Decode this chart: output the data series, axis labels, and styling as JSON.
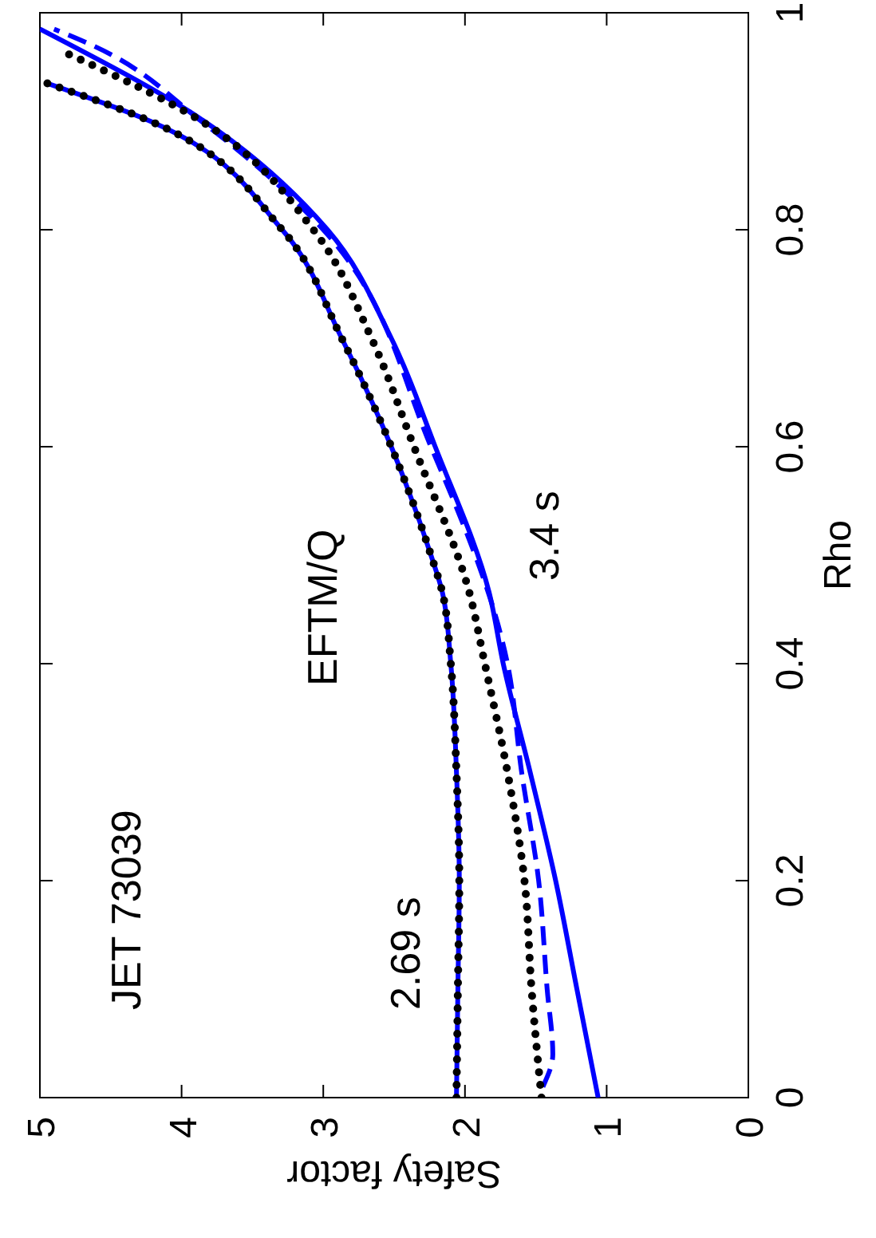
{
  "chart_data": {
    "type": "line",
    "xlabel": "Safety factor",
    "ylabel": "Rho",
    "xlim": [
      5,
      0
    ],
    "xticks": [
      5,
      4,
      3,
      2,
      1,
      0
    ],
    "ylim": [
      0,
      1
    ],
    "yticks": [
      0,
      0.2,
      0.4,
      0.6,
      0.8,
      1
    ],
    "grid": false,
    "series": [
      {
        "color": "#0000ff",
        "line_style": "solid",
        "x": [
          2.06,
          2.05,
          2.04,
          2.06,
          2.1,
          2.16,
          2.24,
          2.52,
          2.87,
          3.29,
          4.22,
          4.95
        ],
        "values": [
          0,
          0.1,
          0.2,
          0.3,
          0.4,
          0.466,
          0.5,
          0.6,
          0.7,
          0.8,
          0.9,
          0.935
        ]
      },
      {
        "color": "#000000",
        "line_style": "dotted",
        "x": [
          2.06,
          2.05,
          2.04,
          2.06,
          2.1,
          2.16,
          2.24,
          2.52,
          2.87,
          3.29,
          4.22,
          4.95
        ],
        "values": [
          0,
          0.1,
          0.2,
          0.3,
          0.4,
          0.466,
          0.5,
          0.6,
          0.7,
          0.8,
          0.9,
          0.935
        ]
      },
      {
        "color": "#0000ff",
        "line_style": "solid",
        "x": [
          1.06,
          1.21,
          1.36,
          1.54,
          1.73,
          1.83,
          2.21,
          2.52,
          2.97,
          3.84,
          5.0
        ],
        "values": [
          0,
          0.1,
          0.2,
          0.3,
          0.4,
          0.466,
          0.6,
          0.7,
          0.8,
          0.9,
          0.985
        ]
      },
      {
        "color": "#0000ff",
        "line_style": "dashed",
        "x": [
          1.45,
          1.38,
          1.42,
          1.48,
          1.6,
          1.7,
          2.24,
          3.0,
          3.86,
          4.63,
          4.9
        ],
        "values": [
          0.01,
          0.04,
          0.1,
          0.2,
          0.3,
          0.4,
          0.6,
          0.8,
          0.9,
          0.97,
          0.985
        ]
      },
      {
        "color": "#000000",
        "line_style": "dotted",
        "x": [
          1.46,
          1.53,
          1.58,
          1.7,
          1.86,
          1.97,
          2.36,
          2.66,
          3.07,
          3.86,
          4.85
        ],
        "values": [
          0,
          0.1,
          0.2,
          0.3,
          0.4,
          0.466,
          0.6,
          0.7,
          0.8,
          0.9,
          0.965
        ]
      }
    ],
    "annotations": [
      "JET 73039",
      "EFTM/Q",
      "2.69 s",
      "3.4 s"
    ]
  }
}
